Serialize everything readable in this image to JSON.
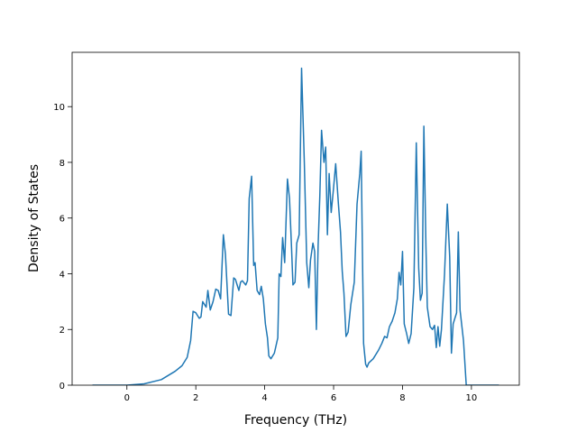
{
  "chart_data": {
    "type": "line",
    "xlabel": "Frequency (THz)",
    "ylabel": "Density of States",
    "xlim": [
      -1.59,
      11.39
    ],
    "ylim": [
      0,
      11.95
    ],
    "xticks": [
      0,
      2,
      4,
      6,
      8,
      10
    ],
    "yticks": [
      0,
      2,
      4,
      6,
      8,
      10
    ],
    "series": [
      {
        "color": "#1f77b4",
        "x": [
          -1,
          0,
          0.5,
          1,
          1.2,
          1.4,
          1.6,
          1.75,
          1.85,
          1.92,
          2.0,
          2.1,
          2.15,
          2.2,
          2.3,
          2.35,
          2.42,
          2.5,
          2.58,
          2.65,
          2.72,
          2.8,
          2.86,
          2.95,
          3.02,
          3.1,
          3.15,
          3.25,
          3.3,
          3.35,
          3.45,
          3.5,
          3.55,
          3.62,
          3.68,
          3.72,
          3.78,
          3.85,
          3.9,
          3.96,
          4.02,
          4.08,
          4.12,
          4.18,
          4.28,
          4.38,
          4.42,
          4.47,
          4.52,
          4.58,
          4.66,
          4.72,
          4.78,
          4.82,
          4.88,
          4.93,
          5.0,
          5.07,
          5.15,
          5.22,
          5.28,
          5.33,
          5.4,
          5.45,
          5.5,
          5.55,
          5.6,
          5.65,
          5.72,
          5.77,
          5.82,
          5.87,
          5.93,
          6.0,
          6.06,
          6.14,
          6.2,
          6.25,
          6.3,
          6.36,
          6.42,
          6.5,
          6.6,
          6.68,
          6.76,
          6.8,
          6.87,
          6.93,
          6.97,
          7.02,
          7.15,
          7.3,
          7.4,
          7.48,
          7.55,
          7.62,
          7.7,
          7.78,
          7.85,
          7.9,
          7.95,
          8.0,
          8.05,
          8.12,
          8.18,
          8.25,
          8.33,
          8.4,
          8.47,
          8.52,
          8.57,
          8.62,
          8.68,
          8.72,
          8.8,
          8.87,
          8.93,
          8.98,
          9.03,
          9.08,
          9.13,
          9.22,
          9.3,
          9.37,
          9.42,
          9.47,
          9.52,
          9.57,
          9.62,
          9.67,
          9.77,
          9.85,
          10.8
        ],
        "values": [
          0,
          0,
          0.05,
          0.2,
          0.35,
          0.5,
          0.7,
          1.0,
          1.6,
          2.65,
          2.6,
          2.4,
          2.45,
          3.0,
          2.8,
          3.4,
          2.7,
          3.0,
          3.45,
          3.4,
          3.1,
          5.4,
          4.7,
          2.55,
          2.5,
          3.85,
          3.8,
          3.4,
          3.7,
          3.75,
          3.6,
          3.75,
          6.7,
          7.5,
          4.3,
          4.4,
          3.4,
          3.25,
          3.55,
          3.1,
          2.2,
          1.7,
          1.05,
          0.95,
          1.15,
          1.7,
          4.0,
          3.9,
          5.3,
          4.4,
          7.4,
          6.7,
          4.9,
          3.6,
          3.7,
          5.1,
          5.4,
          11.38,
          8.0,
          4.4,
          3.5,
          4.5,
          5.1,
          4.8,
          2.0,
          5.0,
          6.8,
          9.15,
          8.0,
          8.55,
          5.4,
          7.6,
          6.2,
          7.1,
          7.95,
          6.5,
          5.5,
          4.1,
          3.3,
          1.75,
          1.9,
          2.9,
          3.7,
          6.5,
          7.6,
          8.4,
          1.5,
          0.75,
          0.65,
          0.8,
          0.95,
          1.25,
          1.5,
          1.75,
          1.7,
          2.1,
          2.3,
          2.6,
          3.1,
          4.05,
          3.6,
          4.8,
          2.2,
          1.85,
          1.5,
          1.85,
          3.5,
          8.7,
          4.2,
          3.05,
          3.3,
          9.3,
          5.0,
          2.8,
          2.1,
          2.0,
          2.15,
          1.35,
          2.1,
          1.4,
          2.0,
          4.0,
          6.5,
          4.6,
          1.15,
          2.2,
          2.4,
          2.6,
          5.5,
          2.7,
          1.6,
          0,
          0
        ]
      }
    ]
  }
}
